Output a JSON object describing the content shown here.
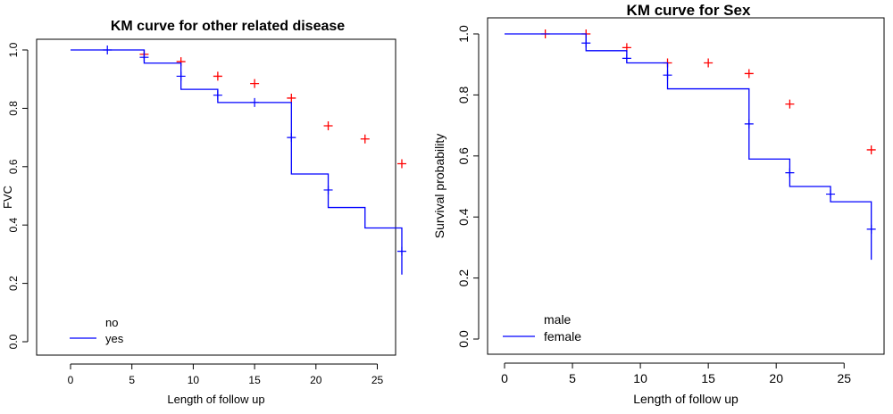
{
  "chart_data": [
    {
      "type": "line",
      "title": "KM curve for other related disease",
      "xlabel": "Length of follow up",
      "ylabel": "FVC",
      "xlim": [
        0,
        27
      ],
      "ylim": [
        0,
        1
      ],
      "xticks": [
        "0",
        "5",
        "10",
        "15",
        "20",
        "25"
      ],
      "yticks": [
        "0.0",
        "0.2",
        "0.4",
        "0.6",
        "0.8",
        "1.0"
      ],
      "grid": false,
      "legend_position": "bottom-left",
      "series": [
        {
          "name": "no",
          "color": "#ff0000",
          "style": "marks",
          "x": [
            6,
            9,
            12,
            15,
            18,
            21,
            24,
            27
          ],
          "y": [
            0.985,
            0.96,
            0.91,
            0.885,
            0.835,
            0.74,
            0.695,
            0.61
          ]
        },
        {
          "name": "yes",
          "color": "#0000ff",
          "style": "step",
          "x": [
            0,
            6,
            9,
            12,
            18,
            21,
            24,
            27
          ],
          "y": [
            1.0,
            0.955,
            0.865,
            0.82,
            0.575,
            0.46,
            0.39,
            0.23
          ],
          "censored": {
            "x": [
              3,
              6,
              9,
              12,
              15,
              18,
              21,
              27
            ],
            "y": [
              1.0,
              0.975,
              0.91,
              0.845,
              0.82,
              0.7,
              0.52,
              0.31
            ]
          }
        }
      ]
    },
    {
      "type": "line",
      "title": "KM curve for Sex",
      "xlabel": "Length of follow up",
      "ylabel": "Survival probability",
      "xlim": [
        0,
        27
      ],
      "ylim": [
        0,
        1
      ],
      "xticks": [
        "0",
        "5",
        "10",
        "15",
        "20",
        "25"
      ],
      "yticks": [
        "0.0",
        "0.2",
        "0.4",
        "0.6",
        "0.8",
        "1.0"
      ],
      "grid": false,
      "legend_position": "bottom-left",
      "series": [
        {
          "name": "male",
          "color": "#ff0000",
          "style": "marks",
          "x": [
            3,
            6,
            9,
            12,
            15,
            18,
            21,
            27
          ],
          "y": [
            1.0,
            1.0,
            0.955,
            0.905,
            0.905,
            0.87,
            0.77,
            0.62
          ]
        },
        {
          "name": "female",
          "color": "#0000ff",
          "style": "step",
          "x": [
            0,
            6,
            9,
            12,
            18,
            21,
            24,
            27
          ],
          "y": [
            1.0,
            0.945,
            0.905,
            0.82,
            0.59,
            0.5,
            0.45,
            0.26
          ],
          "censored": {
            "x": [
              6,
              9,
              12,
              18,
              21,
              24,
              27
            ],
            "y": [
              0.97,
              0.92,
              0.865,
              0.705,
              0.545,
              0.475,
              0.36
            ]
          }
        }
      ]
    }
  ]
}
